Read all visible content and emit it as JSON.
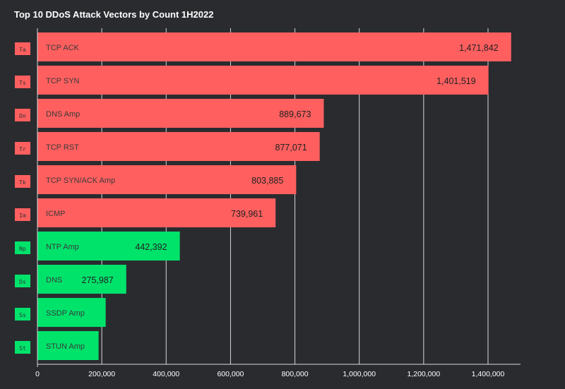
{
  "colors": {
    "background": "#2a2b2f",
    "grid": "#d9d9d9",
    "top6": "#ff5f5f",
    "bottom4": "#00e36b"
  },
  "chart_data": {
    "type": "bar",
    "orientation": "horizontal",
    "title": "Top 10 DDoS Attack Vectors by Count 1H2022",
    "categories": [
      "TCP ACK",
      "TCP SYN",
      "DNS Amp",
      "TCP RST",
      "TCP SYN/ACK Amp",
      "ICMP",
      "NTP Amp",
      "DNS",
      "SSDP Amp",
      "STUN Amp"
    ],
    "abbreviations": [
      "Ta",
      "Ts",
      "Dn",
      "Tr",
      "Tk",
      "Im",
      "Np",
      "Ds",
      "Ss",
      "St"
    ],
    "values": [
      1471842,
      1401519,
      889673,
      877071,
      803885,
      739961,
      442392,
      275987,
      212000,
      190000
    ],
    "value_labels": [
      "1,471,842",
      "1,401,519",
      "889,673",
      "877,071",
      "803,885",
      "739,961",
      "442,392",
      "275,987",
      "",
      ""
    ],
    "bar_colors": [
      "#ff5f5f",
      "#ff5f5f",
      "#ff5f5f",
      "#ff5f5f",
      "#ff5f5f",
      "#ff5f5f",
      "#00e36b",
      "#00e36b",
      "#00e36b",
      "#00e36b"
    ],
    "xlim": [
      0,
      1500000
    ],
    "xticks": [
      0,
      200000,
      400000,
      600000,
      800000,
      1000000,
      1200000,
      1400000
    ],
    "xtick_labels": [
      "0",
      "200,000",
      "400,000",
      "600,000",
      "800,000",
      "1,000,000",
      "1,200,000",
      "1,400,000"
    ],
    "grid": true,
    "xlabel": "",
    "ylabel": ""
  }
}
